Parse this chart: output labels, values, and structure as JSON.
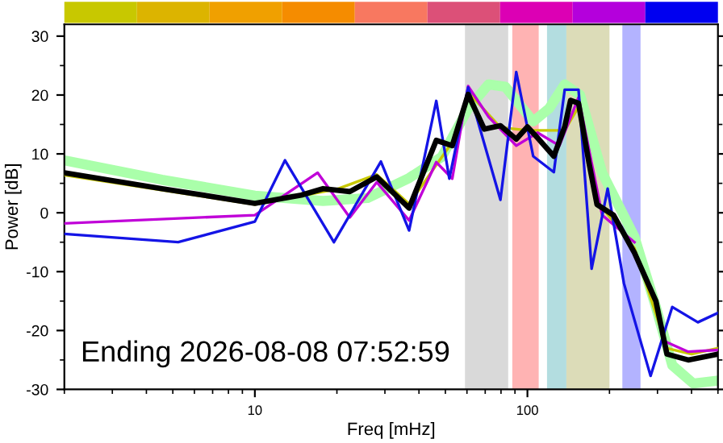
{
  "chart_data": {
    "type": "line",
    "xlabel": "Freq [mHz]",
    "ylabel": "Power [dB]",
    "log": "x",
    "xlim": [
      2,
      500
    ],
    "xticks": [
      10,
      100
    ],
    "ylim": [
      -30,
      32
    ],
    "yticks": [
      -30,
      -20,
      -10,
      0,
      10,
      20,
      30
    ],
    "grid": false,
    "legend": false,
    "marker": "none",
    "line_style": "solid",
    "annotations": [
      "Ending 2026-08-08 07:52:59"
    ],
    "bands": [
      {
        "axis": "x",
        "from": 59,
        "to": 85,
        "color": "#d9d9d9"
      },
      {
        "axis": "x",
        "from": 88,
        "to": 110,
        "color": "#ffb3b3"
      },
      {
        "axis": "x",
        "from": 118,
        "to": 139,
        "color": "#b3dde0"
      },
      {
        "axis": "x",
        "from": 139,
        "to": 200,
        "color": "#dcdcb8"
      },
      {
        "axis": "x",
        "from": 223,
        "to": 260,
        "color": "#b3b3ff"
      }
    ],
    "series": [
      {
        "color": "#aaffaa",
        "x": [
          2,
          4.56,
          10,
          17.8,
          25.9,
          36.8,
          48.5,
          60.6,
          72,
          83,
          105,
          120,
          137,
          156,
          188,
          247,
          296,
          340,
          406,
          500
        ],
        "values": [
          8.9,
          5.6,
          2.9,
          2.0,
          2.5,
          5.9,
          9.5,
          17.7,
          21.8,
          21.4,
          15.5,
          17.7,
          21.8,
          20,
          6.8,
          -4.1,
          -16,
          -25.9,
          -29,
          -28.5
        ]
      },
      {
        "color": "#c8c800",
        "x": [
          2,
          10,
          20,
          28,
          36.8,
          53,
          60.6,
          79.6,
          100,
          137,
          154,
          180,
          247,
          325,
          400,
          500
        ],
        "values": [
          6.4,
          1.4,
          4,
          6.5,
          1.5,
          12,
          20.5,
          14.5,
          14,
          14,
          18,
          2,
          -6,
          -23,
          -24,
          -23
        ]
      },
      {
        "color": "#c000d8",
        "x": [
          2,
          10,
          17,
          22.3,
          28,
          36.8,
          46.3,
          53,
          60.6,
          72,
          91,
          109,
          131,
          154,
          188,
          247,
          296,
          325,
          389,
          500
        ],
        "values": [
          -1.8,
          -0.4,
          6.8,
          -0.8,
          5.2,
          -1.3,
          8.6,
          5.8,
          21.5,
          16.3,
          11.4,
          13.6,
          11.4,
          19.6,
          -0.4,
          -5,
          null,
          -22,
          -23.6,
          -23.3
        ]
      },
      {
        "color": "#1414e6",
        "x": [
          2,
          5.23,
          10,
          12.9,
          19.5,
          29,
          36.8,
          46.3,
          51.7,
          60.6,
          79.6,
          91,
          105,
          125,
          137,
          154,
          172,
          197,
          226,
          283,
          340,
          422,
          500
        ],
        "values": [
          -3.6,
          -5.0,
          -1.5,
          8.9,
          -5.0,
          8.7,
          -3.0,
          19.0,
          5.8,
          21.3,
          2.2,
          23.9,
          9.6,
          6.9,
          20.9,
          20.9,
          -9.5,
          4.1,
          -12,
          -27.7,
          -16,
          -18.6,
          -17
        ]
      },
      {
        "color": "#000000",
        "x": [
          2,
          4.56,
          10,
          14.8,
          17.8,
          22.3,
          28,
          36.8,
          46.3,
          53,
          60.6,
          69.5,
          79.6,
          91,
          100,
          109,
          125,
          137,
          144,
          154,
          168,
          180,
          207,
          247,
          296,
          325,
          389,
          500
        ],
        "values": [
          6.8,
          4.1,
          1.6,
          3.0,
          4.1,
          3.6,
          6.1,
          0.8,
          12.3,
          11.4,
          20.1,
          14.2,
          14.8,
          12.5,
          14.6,
          12.7,
          9.6,
          14.6,
          19.1,
          18.6,
          8.6,
          1.4,
          -0.4,
          -6.8,
          -15,
          -24,
          -25,
          -24
        ]
      }
    ]
  }
}
